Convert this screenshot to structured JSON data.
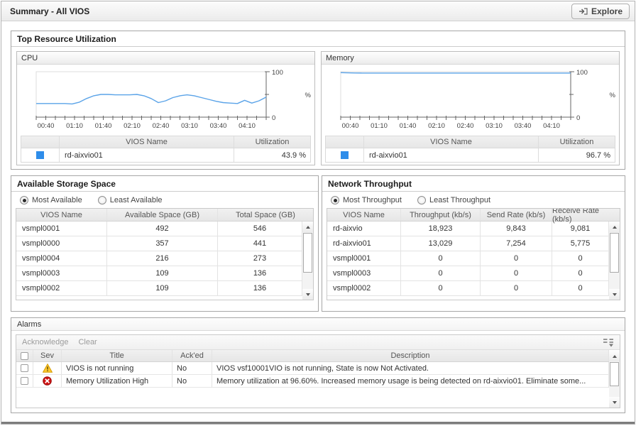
{
  "header": {
    "title": "Summary - All VIOS",
    "explore_label": "Explore"
  },
  "top_resource": {
    "title": "Top Resource Utilization",
    "cpu": {
      "title": "CPU",
      "swatch_color": "#2E8DEA",
      "headers": {
        "name": "VIOS Name",
        "value": "Utilization"
      },
      "row": {
        "name": "rd-aixvio01",
        "value": "43.9 %"
      }
    },
    "memory": {
      "title": "Memory",
      "swatch_color": "#2E8DEA",
      "headers": {
        "name": "VIOS Name",
        "value": "Utilization"
      },
      "row": {
        "name": "rd-aixvio01",
        "value": "96.7 %"
      }
    }
  },
  "chart_data": [
    {
      "type": "line",
      "title": "CPU",
      "ylabel": "%",
      "ylim": [
        0,
        100
      ],
      "y_tick_labels": [
        "0",
        "100"
      ],
      "x_tick_labels": [
        "00:40",
        "01:10",
        "01:40",
        "02:10",
        "02:40",
        "03:10",
        "03:40",
        "04:10"
      ],
      "grid": false,
      "legend_position": "table-below",
      "series": [
        {
          "name": "rd-aixvio01",
          "color": "#5AA3E8",
          "values": [
            30,
            30,
            30,
            30,
            30,
            29,
            33,
            41,
            47,
            50,
            50,
            49,
            49,
            49,
            50,
            47,
            41,
            32,
            36,
            43,
            47,
            49,
            47,
            43,
            39,
            35,
            32,
            31,
            30,
            37,
            31,
            36,
            44
          ]
        }
      ]
    },
    {
      "type": "line",
      "title": "Memory",
      "ylabel": "%",
      "ylim": [
        0,
        100
      ],
      "y_tick_labels": [
        "0",
        "100"
      ],
      "x_tick_labels": [
        "00:40",
        "01:10",
        "01:40",
        "02:10",
        "02:40",
        "03:10",
        "03:40",
        "04:10"
      ],
      "grid": false,
      "legend_position": "table-below",
      "series": [
        {
          "name": "rd-aixvio01",
          "color": "#5AA3E8",
          "values": [
            98,
            97.5,
            97.2,
            97,
            97,
            97,
            97,
            97,
            97,
            97,
            97,
            97,
            97,
            97,
            97,
            97,
            97,
            97,
            97,
            97,
            97,
            97,
            97,
            97,
            97,
            97,
            97,
            97,
            97,
            97,
            97,
            97,
            97
          ]
        }
      ]
    }
  ],
  "storage": {
    "title": "Available Storage Space",
    "radio_most": "Most Available",
    "radio_least": "Least Available",
    "headers": [
      "VIOS Name",
      "Available Space (GB)",
      "Total Space (GB)"
    ],
    "rows": [
      [
        "vsmpl0001",
        "492",
        "546"
      ],
      [
        "vsmpl0000",
        "357",
        "441"
      ],
      [
        "vsmpl0004",
        "216",
        "273"
      ],
      [
        "vsmpl0003",
        "109",
        "136"
      ],
      [
        "vsmpl0002",
        "109",
        "136"
      ]
    ]
  },
  "network": {
    "title": "Network Throughput",
    "radio_most": "Most Throughput",
    "radio_least": "Least Throughput",
    "headers": [
      "VIOS Name",
      "Throughput (kb/s)",
      "Send Rate (kb/s)",
      "Receive Rate (kb/s)"
    ],
    "rows": [
      [
        "rd-aixvio",
        "18,923",
        "9,843",
        "9,081"
      ],
      [
        "rd-aixvio01",
        "13,029",
        "7,254",
        "5,775"
      ],
      [
        "vsmpl0001",
        "0",
        "0",
        "0"
      ],
      [
        "vsmpl0003",
        "0",
        "0",
        "0"
      ],
      [
        "vsmpl0002",
        "0",
        "0",
        "0"
      ]
    ]
  },
  "alarms": {
    "title": "Alarms",
    "toolbar": {
      "acknowledge": "Acknowledge",
      "clear": "Clear"
    },
    "headers": [
      "Sev",
      "Title",
      "Ack'ed",
      "Description"
    ],
    "rows": [
      {
        "severity": "warning",
        "title": "VIOS is not running",
        "acked": "No",
        "description": "VIOS vsf10001VIO is not running, State is now Not Activated."
      },
      {
        "severity": "error",
        "title": "Memory Utilization High",
        "acked": "No",
        "description": "Memory utilization at 96.60%. Increased memory usage is being detected on rd-aixvio01. Eliminate some..."
      }
    ]
  }
}
